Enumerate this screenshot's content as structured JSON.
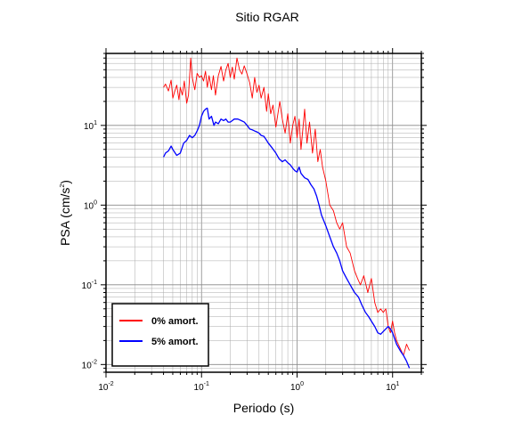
{
  "chart_data": {
    "type": "line",
    "title": "Sitio RGAR",
    "xlabel": "Periodo (s)",
    "ylabel_main": "PSA (cm/s",
    "ylabel_sup": "2",
    "ylabel_close": ")",
    "xscale": "log",
    "yscale": "log",
    "xlim": [
      0.01,
      20
    ],
    "ylim": [
      0.008,
      80
    ],
    "grid": true,
    "legend_position": "bottom-left",
    "x_ticks": [
      {
        "value": 0.01,
        "base": "10",
        "exp": "-2"
      },
      {
        "value": 0.1,
        "base": "10",
        "exp": "-1"
      },
      {
        "value": 1,
        "base": "10",
        "exp": "0"
      },
      {
        "value": 10,
        "base": "10",
        "exp": "1"
      }
    ],
    "y_ticks": [
      {
        "value": 0.01,
        "base": "10",
        "exp": "-2"
      },
      {
        "value": 0.1,
        "base": "10",
        "exp": "-1"
      },
      {
        "value": 1,
        "base": "10",
        "exp": "0"
      },
      {
        "value": 10,
        "base": "10",
        "exp": "1"
      }
    ],
    "series": [
      {
        "name": "0% amort.",
        "color": "#ff0000",
        "x": [
          0.04,
          0.042,
          0.045,
          0.048,
          0.05,
          0.052,
          0.055,
          0.058,
          0.06,
          0.063,
          0.066,
          0.07,
          0.073,
          0.077,
          0.08,
          0.085,
          0.09,
          0.095,
          0.1,
          0.105,
          0.11,
          0.115,
          0.12,
          0.127,
          0.133,
          0.14,
          0.15,
          0.16,
          0.17,
          0.18,
          0.19,
          0.2,
          0.21,
          0.22,
          0.235,
          0.25,
          0.265,
          0.28,
          0.3,
          0.32,
          0.34,
          0.36,
          0.38,
          0.4,
          0.42,
          0.45,
          0.48,
          0.5,
          0.53,
          0.56,
          0.6,
          0.63,
          0.66,
          0.7,
          0.75,
          0.8,
          0.85,
          0.9,
          0.95,
          1.0,
          1.05,
          1.1,
          1.15,
          1.2,
          1.27,
          1.35,
          1.45,
          1.55,
          1.65,
          1.75,
          1.85,
          2.0,
          2.2,
          2.4,
          2.6,
          2.8,
          3.0,
          3.3,
          3.6,
          4.0,
          4.3,
          4.6,
          5.0,
          5.5,
          6.0,
          6.5,
          7.0,
          7.5,
          8.0,
          8.5,
          9.0,
          9.5,
          10.0,
          10.5,
          11,
          12,
          13,
          14,
          15
        ],
        "y": [
          30,
          33,
          27,
          37,
          22,
          26,
          32,
          21,
          30,
          24,
          36,
          19,
          24,
          70,
          40,
          28,
          45,
          40,
          42,
          36,
          48,
          30,
          42,
          28,
          42,
          24,
          42,
          55,
          36,
          50,
          60,
          40,
          54,
          38,
          70,
          50,
          44,
          56,
          44,
          34,
          22,
          40,
          26,
          32,
          22,
          30,
          15,
          25,
          14,
          18,
          9.5,
          14,
          20,
          12,
          8,
          14,
          6,
          10,
          13,
          7,
          12,
          5,
          9,
          16,
          6,
          11,
          4.5,
          9,
          3.5,
          5,
          3,
          2,
          1.0,
          0.85,
          0.6,
          0.5,
          0.6,
          0.3,
          0.25,
          0.15,
          0.12,
          0.1,
          0.13,
          0.08,
          0.12,
          0.06,
          0.045,
          0.05,
          0.045,
          0.05,
          0.03,
          0.025,
          0.035,
          0.025,
          0.02,
          0.016,
          0.013,
          0.018,
          0.015
        ]
      },
      {
        "name": "5% amort.",
        "color": "#0000ff",
        "x": [
          0.04,
          0.042,
          0.045,
          0.048,
          0.05,
          0.055,
          0.06,
          0.065,
          0.07,
          0.075,
          0.08,
          0.085,
          0.09,
          0.095,
          0.1,
          0.105,
          0.11,
          0.115,
          0.12,
          0.127,
          0.135,
          0.14,
          0.15,
          0.16,
          0.17,
          0.18,
          0.19,
          0.2,
          0.22,
          0.24,
          0.26,
          0.28,
          0.3,
          0.32,
          0.34,
          0.36,
          0.38,
          0.4,
          0.42,
          0.45,
          0.48,
          0.5,
          0.55,
          0.6,
          0.65,
          0.7,
          0.75,
          0.8,
          0.85,
          0.9,
          0.95,
          1.0,
          1.05,
          1.1,
          1.2,
          1.3,
          1.4,
          1.5,
          1.6,
          1.7,
          1.8,
          2.0,
          2.2,
          2.4,
          2.6,
          2.8,
          3.0,
          3.3,
          3.6,
          4.0,
          4.4,
          4.8,
          5.2,
          5.6,
          6.0,
          6.5,
          7.0,
          7.5,
          8.0,
          8.5,
          9.0,
          9.5,
          10,
          11,
          12,
          13,
          14,
          15
        ],
        "y": [
          4.0,
          4.5,
          4.8,
          5.5,
          5.0,
          4.2,
          4.5,
          6.0,
          6.5,
          7.5,
          7.0,
          7.5,
          8.5,
          10,
          13,
          15,
          16,
          16.5,
          12,
          13,
          10,
          11,
          10.5,
          12,
          11.5,
          12,
          11,
          11,
          12,
          12,
          11.5,
          11,
          10,
          9,
          8.8,
          8.5,
          8.3,
          8,
          7.5,
          7.3,
          6.5,
          6.0,
          5.2,
          4.5,
          3.8,
          3.5,
          3.7,
          3.4,
          3.2,
          2.9,
          2.7,
          2.6,
          3.0,
          2.5,
          2.2,
          2.1,
          1.8,
          1.6,
          1.3,
          1.0,
          0.75,
          0.55,
          0.4,
          0.3,
          0.25,
          0.2,
          0.15,
          0.12,
          0.1,
          0.08,
          0.07,
          0.055,
          0.045,
          0.04,
          0.035,
          0.03,
          0.025,
          0.024,
          0.026,
          0.028,
          0.03,
          0.028,
          0.025,
          0.018,
          0.015,
          0.013,
          0.011,
          0.009
        ]
      }
    ]
  }
}
